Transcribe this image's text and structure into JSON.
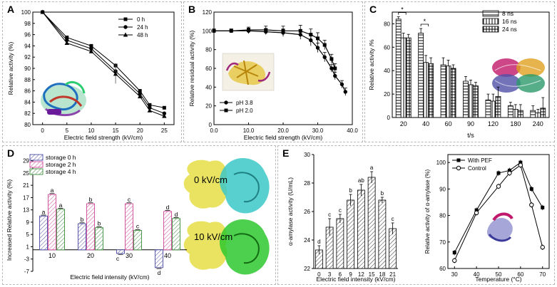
{
  "panels": {
    "A": {
      "label": "A"
    },
    "B": {
      "label": "B"
    },
    "C": {
      "label": "C"
    },
    "D": {
      "label": "D",
      "structure_labels": [
        "0 kV/cm",
        "10 kV/cm"
      ]
    },
    "E": {
      "label": "E"
    }
  },
  "colors": {
    "ink": "#000000",
    "pink": "#d1489a",
    "blue": "#4c4ca6",
    "green": "#3c8c3c",
    "gray": "#555555"
  },
  "chart_data": [
    {
      "id": "A",
      "type": "line",
      "title": "",
      "xlabel": "Electric field strength (kV/cm)",
      "ylabel": "Relative activity (%)",
      "x": [
        0,
        5,
        10,
        15,
        20,
        22,
        25
      ],
      "xticks": [
        0,
        5,
        10,
        15,
        20,
        25
      ],
      "xlim": [
        -2,
        27
      ],
      "yticks": [
        80,
        82,
        84,
        86,
        88,
        90,
        92,
        94,
        96,
        98,
        100
      ],
      "ylim": [
        80,
        100
      ],
      "series": [
        {
          "name": "0 h",
          "marker": "square",
          "values": [
            100,
            95.5,
            94.0,
            90.5,
            86.0,
            83.5,
            83.0
          ],
          "err": [
            0,
            0.2,
            0.3,
            0.4,
            0.3,
            0.2,
            0.2
          ]
        },
        {
          "name": "24 h",
          "marker": "circle",
          "values": [
            100,
            95.0,
            93.5,
            89.5,
            85.5,
            83.0,
            82.0
          ],
          "err": [
            0,
            0.2,
            0.3,
            0.4,
            0.3,
            0.2,
            0.2
          ]
        },
        {
          "name": "48 h",
          "marker": "triangle",
          "values": [
            100,
            94.5,
            93.0,
            89.0,
            85.0,
            82.5,
            81.5
          ],
          "err": [
            0,
            0.2,
            0.3,
            1.7,
            0.3,
            0.2,
            0.2
          ]
        }
      ],
      "legend": "top-right"
    },
    {
      "id": "B",
      "type": "line",
      "xlabel": "Electric field strength (kV/cm)",
      "ylabel": "Relative residual activity (%)",
      "xticks": [
        0.0,
        10.0,
        20.0,
        30.0,
        40.0
      ],
      "xtick_labels": [
        "0.0",
        "10.0",
        "20.0",
        "30.0",
        "40.0"
      ],
      "xlim": [
        0,
        40
      ],
      "yticks": [
        0,
        20,
        40,
        60,
        80,
        100,
        120
      ],
      "ylim": [
        0,
        120
      ],
      "series": [
        {
          "name": "pH  3.8",
          "marker": "circle",
          "x": [
            0,
            5,
            10,
            15,
            20,
            25,
            28,
            30,
            32,
            34,
            35,
            37,
            38
          ],
          "values": [
            100,
            100,
            100,
            99,
            98,
            96,
            90,
            82,
            72,
            60,
            52,
            43,
            35
          ],
          "err": [
            2,
            2,
            3,
            3,
            4,
            5,
            6,
            5,
            5,
            4,
            4,
            4,
            4
          ]
        },
        {
          "name": "pH  2.0",
          "marker": "square",
          "x": [
            0,
            5,
            10,
            15,
            20,
            25,
            28,
            30,
            32,
            34,
            35
          ],
          "values": [
            100,
            100,
            101,
            101,
            100,
            100,
            96,
            92,
            85,
            70,
            60
          ],
          "err": [
            2,
            2,
            3,
            4,
            5,
            6,
            6,
            6,
            5,
            5,
            5
          ]
        }
      ],
      "legend": "bottom-left"
    },
    {
      "id": "C",
      "type": "bar",
      "xlabel": "t/s",
      "ylabel": "Relative activity /%",
      "categories": [
        "20",
        "40",
        "60",
        "90",
        "120",
        "180",
        "240"
      ],
      "yticks": [
        0,
        20,
        40,
        60,
        80
      ],
      "ylim": [
        0,
        90
      ],
      "series": [
        {
          "name": "8 ns",
          "values": [
            84,
            72,
            45,
            31,
            15,
            10,
            6
          ],
          "err": [
            2,
            4,
            6,
            4,
            5,
            3,
            4
          ]
        },
        {
          "name": "16 ns",
          "values": [
            68,
            47,
            44,
            28,
            14,
            7,
            4
          ],
          "err": [
            4,
            6,
            5,
            4,
            6,
            4,
            3
          ]
        },
        {
          "name": "24 ns",
          "values": [
            68,
            46,
            42,
            27,
            18,
            6,
            8
          ],
          "err": [
            3,
            5,
            3,
            3,
            8,
            5,
            9
          ]
        }
      ],
      "annotations": [
        "*",
        "*"
      ],
      "legend": "top-right"
    },
    {
      "id": "D",
      "type": "bar",
      "xlabel": "Electric field intensity (kV/cm)",
      "ylabel": "Increased Relative activity (%)",
      "categories": [
        "10",
        "20",
        "30",
        "40"
      ],
      "yticks": [
        -7,
        -3,
        1,
        5,
        9,
        13,
        17,
        21,
        25,
        29
      ],
      "ylim": [
        -7,
        31
      ],
      "series": [
        {
          "name": "storage 0 h",
          "values": [
            11.0,
            8.5,
            -1.2,
            -5.8
          ],
          "letters": [
            "a",
            "b",
            "c",
            "d"
          ]
        },
        {
          "name": "storage 2 h",
          "values": [
            18.0,
            15.0,
            15.0,
            12.5
          ],
          "letters": [
            "a",
            "b",
            "c",
            "d"
          ]
        },
        {
          "name": "storage 4 h",
          "values": [
            13.2,
            7.2,
            6.3,
            10.2
          ],
          "letters": [
            "a",
            "b",
            "c",
            "d"
          ]
        }
      ],
      "legend": "top-left"
    },
    {
      "id": "E1",
      "type": "bar",
      "xlabel": "Electric field intensity (kV/cm)",
      "ylabel": "α-amylase activity (U/mL)",
      "categories": [
        "0",
        "3",
        "6",
        "9",
        "12",
        "15",
        "18",
        "21"
      ],
      "values": [
        23.3,
        24.9,
        25.5,
        26.8,
        27.5,
        28.4,
        26.8,
        24.8
      ],
      "err": [
        0.3,
        0.6,
        0.3,
        0.4,
        0.4,
        0.4,
        0.2,
        0.4
      ],
      "letters": [
        "d",
        "c",
        "c",
        "b",
        "ab",
        "a",
        "b",
        "c"
      ],
      "yticks": [
        22,
        24,
        26,
        28,
        30
      ],
      "ylim": [
        22,
        30
      ]
    },
    {
      "id": "E2",
      "type": "line",
      "xlabel": "Temperature (°C)",
      "ylabel": "Relative activity of α-amylase (%)",
      "x": [
        30,
        40,
        50,
        55,
        60,
        65,
        70
      ],
      "xticks": [
        30,
        40,
        50,
        60,
        70
      ],
      "xlim": [
        27,
        73
      ],
      "yticks": [
        60,
        70,
        80,
        90,
        100
      ],
      "ylim": [
        60,
        103
      ],
      "series": [
        {
          "name": "With PEF",
          "marker": "filled-square",
          "values": [
            66,
            82,
            96,
            97,
            100,
            90,
            83
          ],
          "err": [
            1,
            1,
            1,
            1,
            1,
            1,
            1
          ]
        },
        {
          "name": "Control",
          "marker": "open-circle",
          "values": [
            63,
            81,
            91,
            96,
            99,
            84,
            68
          ],
          "err": [
            1,
            1,
            1,
            1,
            1,
            1,
            1
          ]
        }
      ],
      "legend": "top-left"
    }
  ]
}
